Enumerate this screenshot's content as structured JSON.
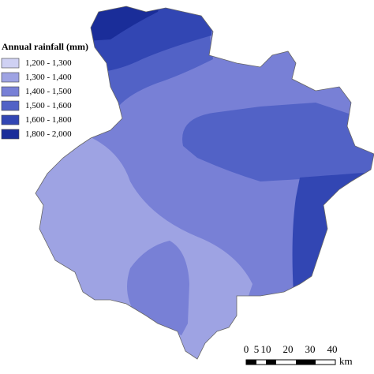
{
  "legend": {
    "title": "Annual rainfall (mm)",
    "items": [
      {
        "label": "1,200 - 1,300",
        "color": "#cfd1f3"
      },
      {
        "label": "1,300 - 1,400",
        "color": "#9ea3e3"
      },
      {
        "label": "1,400 - 1,500",
        "color": "#7880d6"
      },
      {
        "label": "1,500 - 1,600",
        "color": "#5262c6"
      },
      {
        "label": "1,600 - 1,800",
        "color": "#3246b3"
      },
      {
        "label": "1,800 - 2,000",
        "color": "#1a2d99"
      }
    ]
  },
  "scale_bar": {
    "labels": [
      "0",
      "5",
      "10",
      "20",
      "30",
      "40"
    ],
    "unit": "km"
  }
}
